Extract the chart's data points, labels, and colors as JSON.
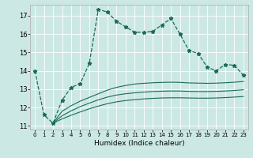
{
  "xlabel": "Humidex (Indice chaleur)",
  "bg_color": "#cce8e4",
  "grid_color": "#ffffff",
  "line_color": "#1a6b5a",
  "xlim": [
    -0.5,
    23.5
  ],
  "ylim": [
    10.8,
    17.6
  ],
  "yticks": [
    11,
    12,
    13,
    14,
    15,
    16,
    17
  ],
  "xticks": [
    0,
    1,
    2,
    3,
    4,
    5,
    6,
    7,
    8,
    9,
    10,
    11,
    12,
    13,
    14,
    15,
    16,
    17,
    18,
    19,
    20,
    21,
    22,
    23
  ],
  "series": [
    {
      "x": [
        0,
        1,
        2,
        3,
        4,
        5,
        6,
        7,
        8,
        9,
        10,
        11,
        12,
        13,
        14,
        15,
        16,
        17,
        18,
        19,
        20,
        21,
        22,
        23
      ],
      "y": [
        14.0,
        11.6,
        11.15,
        12.4,
        13.1,
        13.3,
        14.4,
        17.35,
        17.2,
        16.7,
        16.4,
        16.1,
        16.1,
        16.15,
        16.5,
        16.85,
        16.0,
        15.1,
        14.95,
        14.2,
        14.0,
        14.35,
        14.3,
        13.75
      ],
      "has_markers": true
    },
    {
      "x": [
        2,
        3,
        4,
        5,
        6,
        7,
        8,
        9,
        10,
        11,
        12,
        13,
        14,
        15,
        16,
        17,
        18,
        19,
        20,
        21,
        22,
        23
      ],
      "y": [
        11.15,
        11.8,
        12.1,
        12.35,
        12.55,
        12.75,
        12.95,
        13.1,
        13.2,
        13.28,
        13.32,
        13.35,
        13.37,
        13.38,
        13.37,
        13.34,
        13.33,
        13.32,
        13.33,
        13.35,
        13.38,
        13.42
      ],
      "has_markers": false
    },
    {
      "x": [
        2,
        3,
        4,
        5,
        6,
        7,
        8,
        9,
        10,
        11,
        12,
        13,
        14,
        15,
        16,
        17,
        18,
        19,
        20,
        21,
        22,
        23
      ],
      "y": [
        11.15,
        11.55,
        11.82,
        12.05,
        12.24,
        12.42,
        12.57,
        12.68,
        12.75,
        12.8,
        12.84,
        12.87,
        12.89,
        12.9,
        12.9,
        12.88,
        12.87,
        12.87,
        12.88,
        12.9,
        12.93,
        12.97
      ],
      "has_markers": false
    },
    {
      "x": [
        2,
        3,
        4,
        5,
        6,
        7,
        8,
        9,
        10,
        11,
        12,
        13,
        14,
        15,
        16,
        17,
        18,
        19,
        20,
        21,
        22,
        23
      ],
      "y": [
        11.15,
        11.38,
        11.58,
        11.76,
        11.93,
        12.08,
        12.21,
        12.31,
        12.38,
        12.43,
        12.47,
        12.5,
        12.52,
        12.53,
        12.53,
        12.52,
        12.51,
        12.51,
        12.52,
        12.54,
        12.57,
        12.6
      ],
      "has_markers": false
    }
  ]
}
